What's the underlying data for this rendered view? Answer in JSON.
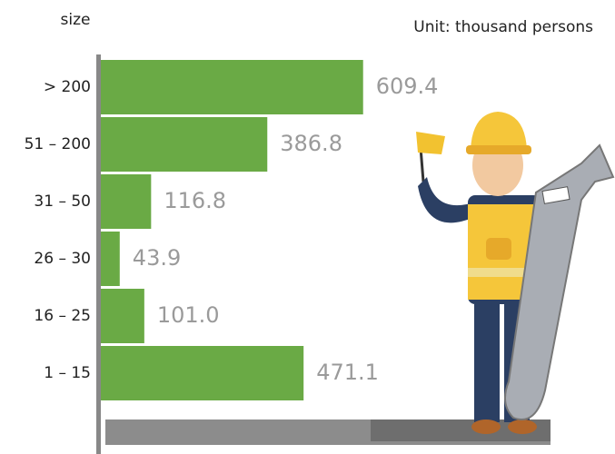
{
  "chart_data": {
    "type": "bar",
    "orientation": "horizontal",
    "y_axis_label": "size",
    "unit_note": "Unit: thousand persons",
    "categories": [
      "> 200",
      "51 – 200",
      "31 – 50",
      "26 – 30",
      "16 – 25",
      "1 – 15"
    ],
    "values": [
      609.4,
      386.8,
      116.8,
      43.9,
      101.0,
      471.1
    ],
    "value_labels": [
      "609.4",
      "386.8",
      "116.8",
      "43.9",
      "101.0",
      "471.1"
    ],
    "color": "#6aaa45",
    "xlim": [
      0,
      610
    ]
  }
}
